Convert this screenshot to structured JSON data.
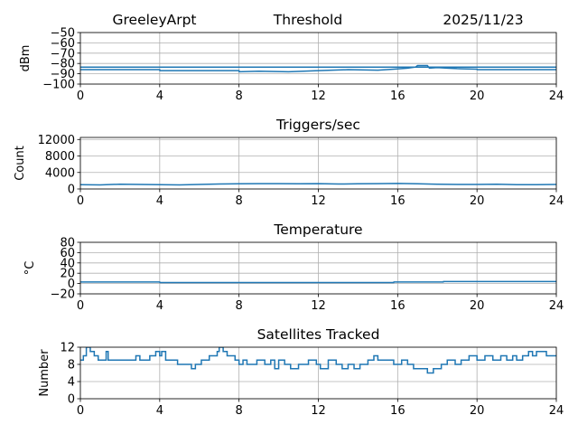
{
  "header": {
    "station": "GreeleyArpt",
    "center": "Threshold",
    "date": "2025/11/23"
  },
  "style": {
    "line_color": "#1f77b4",
    "grid_color": "#b0b0b0",
    "axis_color": "#000000"
  },
  "chart_data": [
    {
      "type": "line",
      "title": "",
      "xlabel": "",
      "ylabel": "dBm",
      "xlim": [
        0,
        24
      ],
      "ylim": [
        -100,
        -50
      ],
      "xticks": [
        0,
        4,
        8,
        12,
        16,
        20,
        24
      ],
      "yticks": [
        -100,
        -90,
        -80,
        -70,
        -60,
        -50
      ],
      "grid": true,
      "series": [
        {
          "x": [
            0,
            4,
            4.01,
            8,
            8.01,
            9,
            10.5,
            12,
            13.5,
            15,
            15.8,
            16.2,
            16.5,
            16.9,
            17.0,
            17.5,
            17.6,
            18.0,
            18.5,
            19.0,
            20.0,
            20.01,
            24
          ],
          "y": [
            -86,
            -86,
            -87,
            -87,
            -88,
            -87.5,
            -88,
            -87,
            -86,
            -86.5,
            -85.5,
            -85,
            -84.5,
            -83.5,
            -82,
            -82,
            -84.5,
            -84,
            -84.5,
            -85,
            -85.5,
            -86,
            -86
          ]
        },
        {
          "x": [
            0,
            24
          ],
          "y": [
            -83.5,
            -83.5
          ]
        }
      ]
    },
    {
      "type": "line",
      "title": "Triggers/sec",
      "xlabel": "",
      "ylabel": "Count",
      "xlim": [
        0,
        24
      ],
      "ylim": [
        0,
        12500
      ],
      "xticks": [
        0,
        4,
        8,
        12,
        16,
        20,
        24
      ],
      "yticks": [
        0,
        4000,
        8000,
        12000
      ],
      "grid": true,
      "series": [
        {
          "x": [
            0,
            1,
            2,
            3,
            4,
            5,
            6,
            7,
            8,
            9,
            10,
            11,
            12,
            13,
            14,
            15,
            16,
            17,
            18,
            19,
            20,
            21,
            22,
            23,
            24
          ],
          "y": [
            1050,
            1000,
            1150,
            1100,
            1050,
            1000,
            1100,
            1200,
            1250,
            1300,
            1300,
            1250,
            1300,
            1200,
            1250,
            1300,
            1350,
            1250,
            1150,
            1100,
            1100,
            1150,
            1050,
            1050,
            1100
          ]
        }
      ]
    },
    {
      "type": "line",
      "title": "Temperature",
      "xlabel": "",
      "ylabel": "°C",
      "xlim": [
        0,
        24
      ],
      "ylim": [
        -20,
        80
      ],
      "xticks": [
        0,
        4,
        8,
        12,
        16,
        20,
        24
      ],
      "yticks": [
        -20,
        0,
        20,
        40,
        60,
        80
      ],
      "grid": true,
      "series": [
        {
          "x": [
            0,
            4,
            4.01,
            15.8,
            15.81,
            18.3,
            18.31,
            24
          ],
          "y": [
            3,
            3,
            2,
            2,
            3,
            3,
            4,
            4
          ]
        }
      ]
    },
    {
      "type": "line",
      "title": "Satellites Tracked",
      "xlabel": "",
      "ylabel": "Number",
      "xlim": [
        0,
        24
      ],
      "ylim": [
        0,
        12
      ],
      "xticks": [
        0,
        4,
        8,
        12,
        16,
        20,
        24
      ],
      "yticks": [
        0,
        4,
        8,
        12
      ],
      "grid": true,
      "series": [
        {
          "x": [
            0,
            0.15,
            0.3,
            0.5,
            0.7,
            0.9,
            1.3,
            1.4,
            1.5,
            2.0,
            2.8,
            3.0,
            3.5,
            3.8,
            4.0,
            4.1,
            4.3,
            4.9,
            5.0,
            5.6,
            5.8,
            6.1,
            6.5,
            6.9,
            7.0,
            7.2,
            7.4,
            7.8,
            8.0,
            8.2,
            8.4,
            8.9,
            9.3,
            9.6,
            9.8,
            10.0,
            10.3,
            10.6,
            11.0,
            11.5,
            11.9,
            12.1,
            12.5,
            12.9,
            13.2,
            13.5,
            13.8,
            14.1,
            14.5,
            14.8,
            15.0,
            15.5,
            15.8,
            16.2,
            16.5,
            16.8,
            17.2,
            17.5,
            17.8,
            18.2,
            18.5,
            18.9,
            19.2,
            19.6,
            20.0,
            20.4,
            20.8,
            21.2,
            21.5,
            21.8,
            22.0,
            22.3,
            22.6,
            22.8,
            23.0,
            23.5,
            24.0
          ],
          "y": [
            9,
            10,
            12,
            11,
            10,
            9,
            11,
            9,
            9,
            9,
            10,
            9,
            10,
            11,
            10,
            11,
            9,
            8,
            8,
            7,
            8,
            9,
            10,
            11,
            12,
            11,
            10,
            9,
            8,
            9,
            8,
            9,
            8,
            9,
            7,
            9,
            8,
            7,
            8,
            9,
            8,
            7,
            9,
            8,
            7,
            8,
            7,
            8,
            9,
            10,
            9,
            9,
            8,
            9,
            8,
            7,
            7,
            6,
            7,
            8,
            9,
            8,
            9,
            10,
            9,
            10,
            9,
            10,
            9,
            10,
            9,
            10,
            11,
            10,
            11,
            10,
            10
          ]
        }
      ]
    }
  ]
}
